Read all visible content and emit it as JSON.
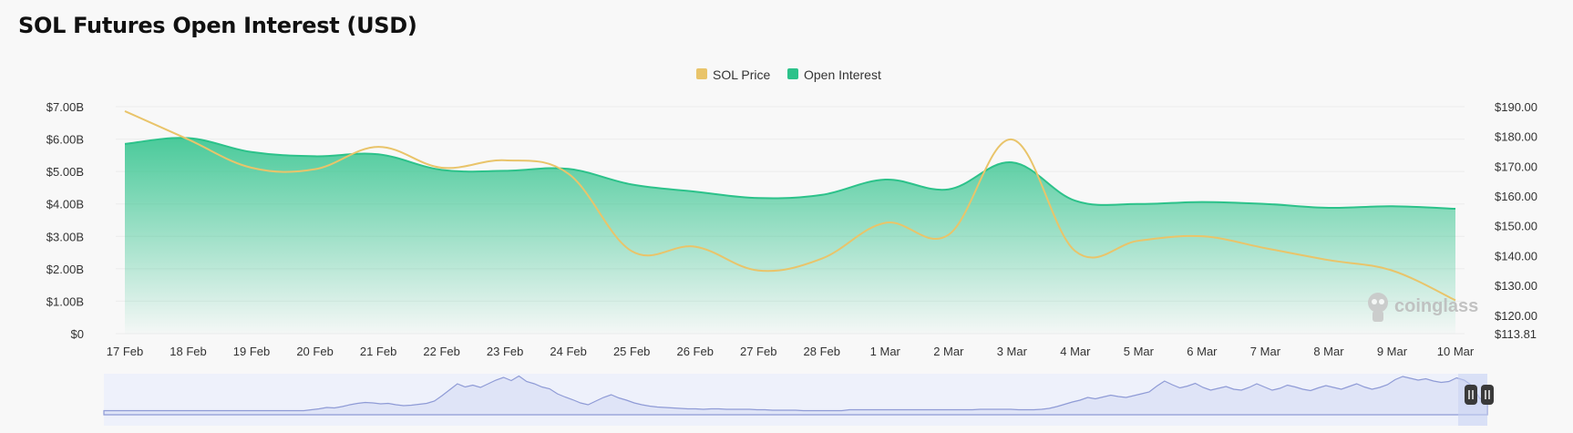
{
  "title": "SOL Futures Open Interest (USD)",
  "watermark": "coinglass",
  "colors": {
    "open_interest": "#2cc28a",
    "sol_price": "#e9c46a",
    "navigator_fill": "#dfe4f7",
    "navigator_line": "#8f9bd6",
    "handle": "#3a3a3a"
  },
  "chart_data": {
    "type": "area",
    "categories": [
      "17 Feb",
      "18 Feb",
      "19 Feb",
      "20 Feb",
      "21 Feb",
      "22 Feb",
      "23 Feb",
      "24 Feb",
      "25 Feb",
      "26 Feb",
      "27 Feb",
      "28 Feb",
      "1 Mar",
      "2 Mar",
      "3 Mar",
      "4 Mar",
      "5 Mar",
      "6 Mar",
      "7 Mar",
      "8 Mar",
      "9 Mar",
      "10 Mar"
    ],
    "series": [
      {
        "name": "Open Interest",
        "axis": "left",
        "values": [
          5.85,
          6.03,
          5.6,
          5.47,
          5.53,
          5.05,
          5.02,
          5.08,
          4.6,
          4.38,
          4.18,
          4.28,
          4.75,
          4.45,
          5.28,
          4.1,
          4.0,
          4.06,
          4.0,
          3.88,
          3.93,
          3.85
        ]
      },
      {
        "name": "SOL Price",
        "axis": "right",
        "values": [
          188.5,
          179.0,
          169.5,
          169.0,
          176.5,
          169.5,
          172.0,
          167.5,
          141.5,
          143.0,
          135.0,
          139.0,
          151.0,
          147.0,
          179.0,
          141.5,
          145.0,
          146.5,
          142.5,
          138.5,
          135.0,
          125.0
        ]
      }
    ],
    "left_axis": {
      "ticks": [
        "$0",
        "$1.00B",
        "$2.00B",
        "$3.00B",
        "$4.00B",
        "$5.00B",
        "$6.00B",
        "$7.00B"
      ],
      "min": 0,
      "max": 7
    },
    "right_axis": {
      "ticks": [
        "$113.81",
        "$120.00",
        "$130.00",
        "$140.00",
        "$150.00",
        "$160.00",
        "$170.00",
        "$180.00",
        "$190.00"
      ],
      "min": 113.81,
      "max": 190
    },
    "legend": {
      "position": "top-center",
      "items": [
        "SOL Price",
        "Open Interest"
      ]
    },
    "grid": true,
    "navigator": {
      "values": [
        0.9,
        0.9,
        0.9,
        0.9,
        0.9,
        0.9,
        0.9,
        0.9,
        0.9,
        0.9,
        0.9,
        0.9,
        0.9,
        0.9,
        0.9,
        0.9,
        0.9,
        0.9,
        0.9,
        0.9,
        0.9,
        0.9,
        0.9,
        0.9,
        0.9,
        0.9,
        0.9,
        1.1,
        1.3,
        1.6,
        1.5,
        1.8,
        2.2,
        2.5,
        2.7,
        2.6,
        2.4,
        2.5,
        2.2,
        2.0,
        2.1,
        2.3,
        2.5,
        3.0,
        4.2,
        5.5,
        6.8,
        6.1,
        6.5,
        6.0,
        6.8,
        7.6,
        8.2,
        7.5,
        8.5,
        7.3,
        6.8,
        6.1,
        5.7,
        4.6,
        3.9,
        3.3,
        2.6,
        2.2,
        3.0,
        3.8,
        4.4,
        3.7,
        3.2,
        2.6,
        2.2,
        1.9,
        1.7,
        1.6,
        1.5,
        1.4,
        1.3,
        1.3,
        1.2,
        1.3,
        1.3,
        1.2,
        1.2,
        1.2,
        1.2,
        1.1,
        1.1,
        1.0,
        1.0,
        1.0,
        1.0,
        0.9,
        0.9,
        0.9,
        0.9,
        0.9,
        0.9,
        1.1,
        1.1,
        1.1,
        1.1,
        1.1,
        1.1,
        1.1,
        1.1,
        1.1,
        1.1,
        1.1,
        1.1,
        1.1,
        1.1,
        1.1,
        1.1,
        1.1,
        1.2,
        1.2,
        1.2,
        1.2,
        1.2,
        1.1,
        1.1,
        1.1,
        1.2,
        1.4,
        1.8,
        2.3,
        2.8,
        3.2,
        3.8,
        3.5,
        3.9,
        4.3,
        4.0,
        3.8,
        4.2,
        4.6,
        5.0,
        6.3,
        7.4,
        6.6,
        5.9,
        6.3,
        6.9,
        6.0,
        5.4,
        5.8,
        6.2,
        5.6,
        5.4,
        6.0,
        6.8,
        6.1,
        5.4,
        5.8,
        6.5,
        6.1,
        5.6,
        5.3,
        5.9,
        6.4,
        6.0,
        5.6,
        6.2,
        6.8,
        6.1,
        5.6,
        6.0,
        6.6,
        7.7,
        8.4,
        8.0,
        7.6,
        7.9,
        7.4,
        7.1,
        7.3,
        8.1,
        7.6,
        6.4,
        3.6,
        3.0
      ]
    }
  }
}
